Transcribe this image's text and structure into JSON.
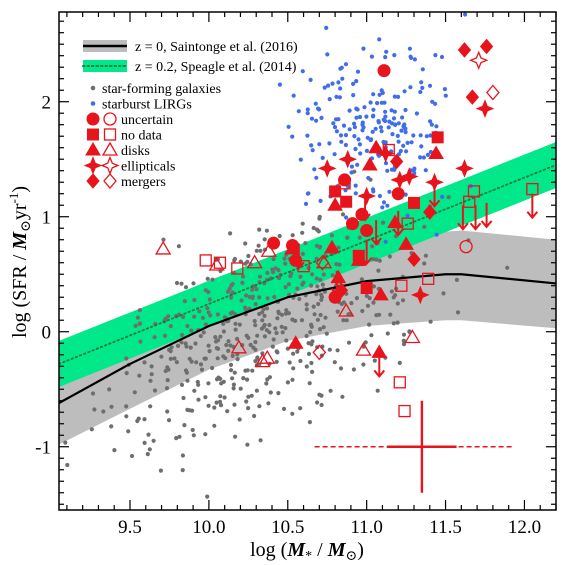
{
  "chart_data": {
    "type": "scatter",
    "xlabel": "log (M* / M⊙)",
    "ylabel": "log (SFR / M⊙yr⁻¹)",
    "xlim": [
      9.05,
      12.2
    ],
    "ylim": [
      -1.55,
      2.78
    ],
    "xticks": [
      9.5,
      10.0,
      10.5,
      11.0,
      11.5,
      12.0
    ],
    "xtick_labels": [
      "9.5",
      "10.0",
      "10.5",
      "11.0",
      "11.5",
      "12.0"
    ],
    "yticks": [
      -1,
      0,
      1,
      2
    ],
    "ytick_labels": [
      "-1",
      "0",
      "1",
      "2"
    ],
    "grid": false,
    "legend_position": "top-left",
    "legend": {
      "relations": [
        {
          "label": "z = 0, Saintonge et al. (2016)",
          "color": "#000000",
          "band_color": "#bdbdbd",
          "style": "solid"
        },
        {
          "label": "z = 0.2, Speagle et al. (2014)",
          "color": "#1a7a3a",
          "band_color": "#00e88a",
          "style": "dotted"
        }
      ],
      "samples": [
        {
          "label": "star-forming galaxies",
          "marker": "dot",
          "color": "#6e6e6e"
        },
        {
          "label": "starburst LIRGs",
          "marker": "dot",
          "color": "#3f6ee8"
        },
        {
          "label": "uncertain",
          "marker": "circle",
          "color": "#e8141c"
        },
        {
          "label": "no data",
          "marker": "square",
          "color": "#e8141c"
        },
        {
          "label": "disks",
          "marker": "triangle",
          "color": "#e8141c"
        },
        {
          "label": "ellipticals",
          "marker": "star4",
          "color": "#e8141c"
        },
        {
          "label": "mergers",
          "marker": "diamond",
          "color": "#e8141c"
        }
      ]
    },
    "series": [
      {
        "name": "z = 0, Saintonge et al. (2016)",
        "kind": "line_band",
        "x": [
          9.05,
          9.5,
          10.0,
          10.5,
          11.0,
          11.5,
          11.6,
          12.2
        ],
        "y": [
          -0.62,
          -0.28,
          0.05,
          0.3,
          0.44,
          0.5,
          0.5,
          0.42
        ],
        "y_low": [
          -0.98,
          -0.67,
          -0.33,
          -0.08,
          0.05,
          0.1,
          0.1,
          0.03
        ],
        "y_high": [
          -0.27,
          0.12,
          0.45,
          0.68,
          0.8,
          0.87,
          0.88,
          0.8
        ]
      },
      {
        "name": "z = 0.2, Speagle et al. (2014)",
        "kind": "line_band",
        "x": [
          9.05,
          12.2
        ],
        "y": [
          -0.28,
          1.45
        ],
        "y_low": [
          -0.48,
          1.25
        ],
        "y_high": [
          -0.08,
          1.65
        ]
      },
      {
        "name": "star-forming galaxies",
        "kind": "dots",
        "generator": {
          "count": 520,
          "x_mean": 10.35,
          "x_sd": 0.5,
          "y_scatter": 0.4,
          "seed": 7
        }
      },
      {
        "name": "starburst LIRGs",
        "kind": "dots",
        "generator": {
          "count": 220,
          "x_mean": 11.05,
          "x_sd": 0.26,
          "y_mean": 1.75,
          "y_sd": 0.38,
          "seed": 13
        }
      },
      {
        "name": "uncertain",
        "points": [
          {
            "x": 10.41,
            "y": 0.77,
            "filled": true
          },
          {
            "x": 10.53,
            "y": 0.75,
            "filled": true
          },
          {
            "x": 10.55,
            "y": 0.62,
            "filled": true
          },
          {
            "x": 10.86,
            "y": 1.32,
            "filled": true
          },
          {
            "x": 10.91,
            "y": 0.94,
            "filled": true
          },
          {
            "x": 11.0,
            "y": 0.88,
            "filled": true
          },
          {
            "x": 11.11,
            "y": 2.27,
            "filled": true
          },
          {
            "x": 11.2,
            "y": 1.2,
            "filled": true
          },
          {
            "x": 10.8,
            "y": 0.3,
            "filled": true
          },
          {
            "x": 11.63,
            "y": 0.74,
            "filled": false
          },
          {
            "x": 10.97,
            "y": 1.02,
            "filled": true
          }
        ]
      },
      {
        "name": "no data",
        "points": [
          {
            "x": 9.98,
            "y": 0.62,
            "filled": false
          },
          {
            "x": 10.07,
            "y": 0.6,
            "filled": false
          },
          {
            "x": 10.18,
            "y": 0.55,
            "filled": false
          },
          {
            "x": 10.6,
            "y": 0.57,
            "filled": false
          },
          {
            "x": 10.8,
            "y": 1.22,
            "filled": true
          },
          {
            "x": 10.86,
            "y": 1.29,
            "filled": false
          },
          {
            "x": 10.87,
            "y": 1.13,
            "filled": true
          },
          {
            "x": 10.95,
            "y": 0.66,
            "filled": true
          },
          {
            "x": 11.14,
            "y": 1.58,
            "filled": false
          },
          {
            "x": 11.22,
            "y": 0.4,
            "filled": false
          },
          {
            "x": 11.26,
            "y": 0.94,
            "filled": false
          },
          {
            "x": 11.3,
            "y": 1.12,
            "filled": true
          },
          {
            "x": 11.39,
            "y": 0.46,
            "filled": false
          },
          {
            "x": 11.45,
            "y": 1.69,
            "filled": true
          },
          {
            "x": 11.65,
            "y": 1.13,
            "filled": false
          },
          {
            "x": 11.68,
            "y": 1.22,
            "filled": false
          },
          {
            "x": 12.05,
            "y": 1.24,
            "filled": false
          },
          {
            "x": 11.21,
            "y": -0.44,
            "filled": false
          },
          {
            "x": 11.24,
            "y": -0.69,
            "filled": false
          },
          {
            "x": 11.0,
            "y": 0.38,
            "filled": true
          }
        ]
      },
      {
        "name": "disks",
        "points": [
          {
            "x": 9.71,
            "y": 0.72,
            "filled": false
          },
          {
            "x": 10.05,
            "y": 0.58,
            "filled": false
          },
          {
            "x": 10.19,
            "y": -0.14,
            "filled": false
          },
          {
            "x": 10.29,
            "y": 0.6,
            "filled": false
          },
          {
            "x": 10.34,
            "y": -0.26,
            "filled": false
          },
          {
            "x": 10.37,
            "y": -0.23,
            "filled": false
          },
          {
            "x": 10.38,
            "y": 0.7,
            "filled": false
          },
          {
            "x": 10.53,
            "y": 0.72,
            "filled": true
          },
          {
            "x": 10.55,
            "y": -0.1,
            "filled": true
          },
          {
            "x": 10.73,
            "y": 0.6,
            "filled": false
          },
          {
            "x": 10.78,
            "y": 0.73,
            "filled": true
          },
          {
            "x": 10.8,
            "y": 1.1,
            "filled": true
          },
          {
            "x": 10.82,
            "y": 0.47,
            "filled": true
          },
          {
            "x": 10.95,
            "y": 0.62,
            "filled": true
          },
          {
            "x": 11.02,
            "y": 1.45,
            "filled": true
          },
          {
            "x": 11.06,
            "y": 1.6,
            "filled": true
          },
          {
            "x": 11.25,
            "y": 0.76,
            "filled": true
          },
          {
            "x": 11.44,
            "y": 1.55,
            "filled": true
          },
          {
            "x": 11.18,
            "y": 0.95,
            "filled": true
          },
          {
            "x": 11.08,
            "y": -0.18,
            "filled": true
          },
          {
            "x": 10.87,
            "y": 0.18,
            "filled": false
          },
          {
            "x": 10.98,
            "y": -0.16,
            "filled": false
          },
          {
            "x": 11.29,
            "y": -0.05,
            "filled": false
          },
          {
            "x": 11.09,
            "y": 0.32,
            "filled": true
          }
        ]
      },
      {
        "name": "ellipticals",
        "points": [
          {
            "x": 10.88,
            "y": 1.5,
            "filled": true
          },
          {
            "x": 11.12,
            "y": 1.55,
            "filled": true
          },
          {
            "x": 11.21,
            "y": 1.32,
            "filled": true
          },
          {
            "x": 11.27,
            "y": 1.35,
            "filled": true
          },
          {
            "x": 11.43,
            "y": 1.3,
            "filled": true
          },
          {
            "x": 11.62,
            "y": 1.42,
            "filled": true
          },
          {
            "x": 11.75,
            "y": 1.94,
            "filled": true
          },
          {
            "x": 11.71,
            "y": 2.36,
            "filled": false
          },
          {
            "x": 10.75,
            "y": 1.42,
            "filled": true
          },
          {
            "x": 11.34,
            "y": 0.32,
            "filled": true
          },
          {
            "x": 11.0,
            "y": 1.18,
            "filled": true
          }
        ]
      },
      {
        "name": "mergers",
        "points": [
          {
            "x": 10.7,
            "y": -0.18,
            "filled": false
          },
          {
            "x": 10.84,
            "y": 0.36,
            "filled": true
          },
          {
            "x": 11.19,
            "y": 1.48,
            "filled": true
          },
          {
            "x": 11.3,
            "y": 0.63,
            "filled": true
          },
          {
            "x": 11.4,
            "y": 1.04,
            "filled": true
          },
          {
            "x": 11.62,
            "y": 2.45,
            "filled": true
          },
          {
            "x": 11.67,
            "y": 2.04,
            "filled": true
          },
          {
            "x": 11.76,
            "y": 2.48,
            "filled": true
          },
          {
            "x": 11.8,
            "y": 2.08,
            "filled": false
          },
          {
            "x": 10.72,
            "y": 0.6,
            "filled": false
          }
        ]
      }
    ],
    "upper_limits": [
      {
        "x": 10.57,
        "y": 0.76
      },
      {
        "x": 10.81,
        "y": 0.53
      },
      {
        "x": 10.99,
        "y": 1.18
      },
      {
        "x": 11.0,
        "y": 0.8
      },
      {
        "x": 11.06,
        "y": 0.97
      },
      {
        "x": 11.08,
        "y": -0.18
      },
      {
        "x": 11.2,
        "y": 1.05
      },
      {
        "x": 11.43,
        "y": 1.3
      },
      {
        "x": 11.61,
        "y": 1.1
      },
      {
        "x": 11.69,
        "y": 1.1
      },
      {
        "x": 11.76,
        "y": 1.12
      },
      {
        "x": 12.05,
        "y": 1.2
      }
    ],
    "error_bar": {
      "x": 11.35,
      "y": -1.0,
      "x_err": 0.22,
      "y_err": 0.4,
      "x_dashed_range": [
        10.67,
        11.92
      ]
    },
    "colors": {
      "main_sequence_line": "#000000",
      "main_sequence_band": "#bdbdbd",
      "speagle_line": "#1a7a3a",
      "speagle_band": "#00e88a",
      "sf_galaxies": "#6e6e6e",
      "lirgs": "#3f6ee8",
      "highlight": "#e8141c"
    }
  }
}
